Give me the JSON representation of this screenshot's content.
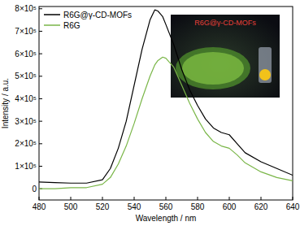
{
  "chart_data": {
    "type": "line",
    "x_label": "Wavelength / nm",
    "y_label": "Intensity / a.u.",
    "x": [
      480,
      490,
      500,
      510,
      520,
      525,
      530,
      535,
      540,
      545,
      550,
      553,
      555,
      558,
      560,
      565,
      570,
      575,
      580,
      585,
      590,
      595,
      600,
      605,
      610,
      620,
      630,
      640
    ],
    "series": [
      {
        "name": "R6G@γ-CD-MOFs",
        "color": "#000000",
        "values": [
          30000,
          27000,
          25000,
          25000,
          40000,
          90000,
          180000,
          300000,
          460000,
          620000,
          750000,
          795000,
          790000,
          765000,
          730000,
          640000,
          530000,
          440000,
          370000,
          310000,
          270000,
          250000,
          240000,
          200000,
          160000,
          120000,
          90000,
          60000
        ]
      },
      {
        "name": "R6G",
        "color": "#7ab648",
        "values": [
          0,
          0,
          5000,
          5000,
          20000,
          50000,
          110000,
          190000,
          290000,
          400000,
          500000,
          550000,
          570000,
          585000,
          580000,
          540000,
          460000,
          380000,
          310000,
          250000,
          210000,
          190000,
          180000,
          150000,
          115000,
          75000,
          50000,
          35000
        ]
      }
    ],
    "xlim": [
      480,
      640
    ],
    "xticks": [
      480,
      500,
      520,
      540,
      560,
      580,
      600,
      620,
      640
    ],
    "ylim": [
      -50000,
      810000
    ],
    "yticks": [
      {
        "value": 0,
        "label": "0"
      },
      {
        "value": 100000,
        "label": "1×10⁵"
      },
      {
        "value": 200000,
        "label": "2×10⁵"
      },
      {
        "value": 300000,
        "label": "3×10⁵"
      },
      {
        "value": 400000,
        "label": "4×10⁵"
      },
      {
        "value": 500000,
        "label": "5×10⁵"
      },
      {
        "value": 600000,
        "label": "6×10⁵"
      },
      {
        "value": 700000,
        "label": "7×10⁵"
      },
      {
        "value": 800000,
        "label": "8×10⁵"
      }
    ],
    "annotations": [
      {
        "text": "R6G@γ-CD-MOFs",
        "color": "#e8403a"
      }
    ],
    "legend": "upper left",
    "grid": false
  }
}
